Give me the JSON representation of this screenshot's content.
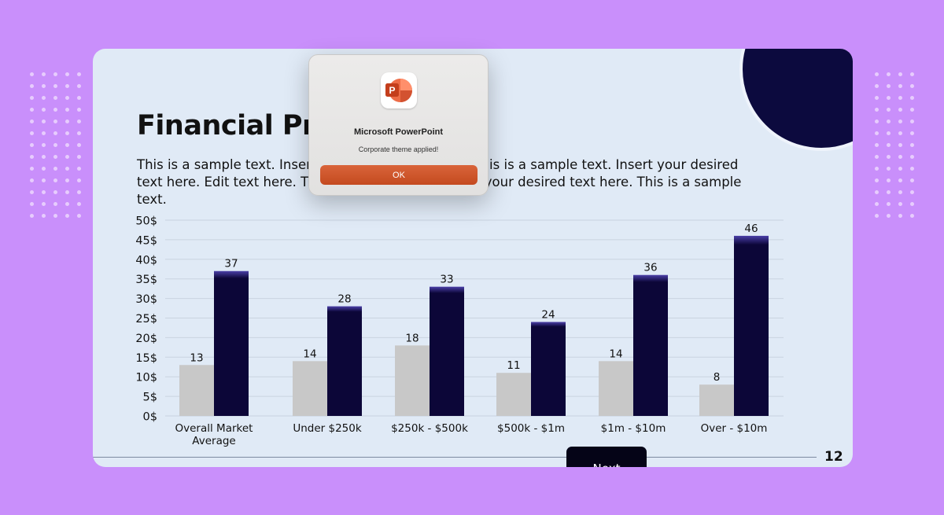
{
  "slide": {
    "title": "Financial Projections",
    "body": "This is a sample text. Insert your desired text here. This is a sample text. Insert your desired text here. Edit text here. This is a sample text. Insert your desired text here. This is a sample text.",
    "page_number": "12",
    "next_label": "Next"
  },
  "dialog": {
    "app_name": "Microsoft PowerPoint",
    "message": "Corporate theme applied!",
    "ok_label": "OK",
    "icon": "powerpoint-app-icon"
  },
  "colors": {
    "background": "#c98ffb",
    "slide": "#e0eaf6",
    "series_gray": "#c8c8c8",
    "series_navy": "#0c0638",
    "accent_circle": "#0c0a3e",
    "ok_button": "#cf5429"
  },
  "chart_data": {
    "type": "bar",
    "categories": [
      [
        "Overall Market",
        "Average"
      ],
      [
        "Under $250k"
      ],
      [
        "$250k - $500k"
      ],
      [
        "$500k - $1m"
      ],
      [
        "$1m - $10m"
      ],
      [
        "Over - $10m"
      ]
    ],
    "series": [
      {
        "values": [
          13,
          14,
          18,
          11,
          14,
          8
        ]
      },
      {
        "values": [
          37,
          28,
          33,
          24,
          36,
          46
        ]
      }
    ],
    "y_ticks": [
      "0$",
      "5$",
      "10$",
      "15$",
      "20$",
      "25$",
      "30$",
      "35$",
      "40$",
      "45$",
      "50$"
    ],
    "ylim": [
      0,
      50
    ],
    "grid": true,
    "legend": "none"
  }
}
